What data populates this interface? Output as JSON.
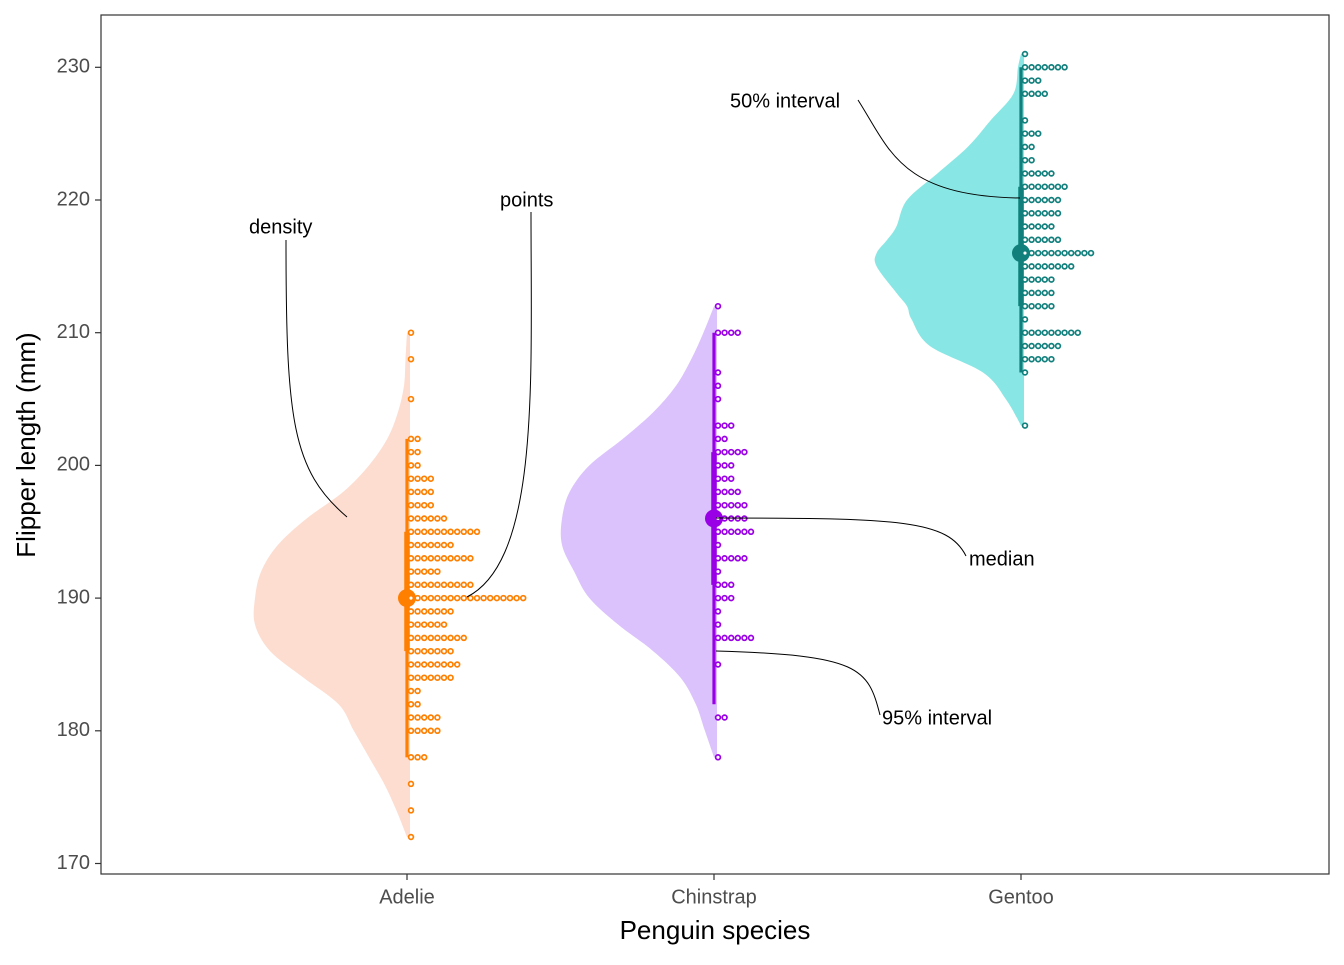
{
  "chart_data": {
    "type": "raincloud",
    "title": "",
    "xlabel": "Penguin species",
    "ylabel": "Flipper length (mm)",
    "ylim": [
      169,
      234
    ],
    "yticks": [
      170,
      180,
      190,
      200,
      210,
      220,
      230
    ],
    "categories": [
      "Adelie",
      "Chinstrap",
      "Gentoo"
    ],
    "grid": false,
    "legend": "none",
    "series": [
      {
        "category": "Adelie",
        "color": "#FF7F00",
        "fill": "#FDDDD0",
        "median": 190,
        "interval_50": [
          186,
          195
        ],
        "interval_95": [
          178,
          202
        ],
        "density": [
          [
            172,
            0.0
          ],
          [
            174,
            0.07
          ],
          [
            176,
            0.15
          ],
          [
            178,
            0.25
          ],
          [
            180,
            0.35
          ],
          [
            182,
            0.45
          ],
          [
            184,
            0.68
          ],
          [
            186,
            0.9
          ],
          [
            188,
            1.0
          ],
          [
            190,
            1.0
          ],
          [
            192,
            0.96
          ],
          [
            194,
            0.85
          ],
          [
            196,
            0.66
          ],
          [
            198,
            0.42
          ],
          [
            200,
            0.25
          ],
          [
            202,
            0.13
          ],
          [
            204,
            0.06
          ],
          [
            206,
            0.02
          ],
          [
            208,
            0.01
          ],
          [
            210,
            0.0
          ]
        ],
        "points": [
          [
            172,
            1
          ],
          [
            174,
            1
          ],
          [
            176,
            1
          ],
          [
            178,
            3
          ],
          [
            180,
            5
          ],
          [
            181,
            5
          ],
          [
            182,
            2
          ],
          [
            183,
            2
          ],
          [
            184,
            7
          ],
          [
            185,
            8
          ],
          [
            186,
            7
          ],
          [
            187,
            9
          ],
          [
            188,
            6
          ],
          [
            189,
            7
          ],
          [
            190,
            18
          ],
          [
            191,
            10
          ],
          [
            192,
            5
          ],
          [
            193,
            10
          ],
          [
            194,
            7
          ],
          [
            195,
            11
          ],
          [
            196,
            6
          ],
          [
            197,
            4
          ],
          [
            198,
            4
          ],
          [
            199,
            4
          ],
          [
            200,
            2
          ],
          [
            201,
            2
          ],
          [
            202,
            2
          ],
          [
            205,
            1
          ],
          [
            208,
            1
          ],
          [
            210,
            1
          ]
        ]
      },
      {
        "category": "Chinstrap",
        "color": "#9A00E6",
        "fill": "#DCC2FC",
        "median": 196,
        "interval_50": [
          191,
          201
        ],
        "interval_95": [
          182,
          210
        ],
        "density": [
          [
            178,
            0.0
          ],
          [
            180,
            0.06
          ],
          [
            182,
            0.12
          ],
          [
            184,
            0.22
          ],
          [
            186,
            0.4
          ],
          [
            188,
            0.63
          ],
          [
            190,
            0.82
          ],
          [
            192,
            0.92
          ],
          [
            194,
            1.0
          ],
          [
            196,
            1.0
          ],
          [
            198,
            0.95
          ],
          [
            200,
            0.82
          ],
          [
            202,
            0.6
          ],
          [
            204,
            0.4
          ],
          [
            206,
            0.25
          ],
          [
            208,
            0.15
          ],
          [
            210,
            0.07
          ],
          [
            212,
            0.0
          ]
        ],
        "points": [
          [
            178,
            1
          ],
          [
            181,
            2
          ],
          [
            185,
            1
          ],
          [
            187,
            6
          ],
          [
            188,
            1
          ],
          [
            189,
            1
          ],
          [
            190,
            3
          ],
          [
            191,
            3
          ],
          [
            192,
            1
          ],
          [
            193,
            5
          ],
          [
            194,
            1
          ],
          [
            195,
            6
          ],
          [
            196,
            5
          ],
          [
            197,
            5
          ],
          [
            198,
            4
          ],
          [
            199,
            3
          ],
          [
            200,
            3
          ],
          [
            201,
            5
          ],
          [
            202,
            2
          ],
          [
            203,
            3
          ],
          [
            205,
            1
          ],
          [
            206,
            1
          ],
          [
            207,
            1
          ],
          [
            210,
            4
          ],
          [
            212,
            1
          ]
        ]
      },
      {
        "category": "Gentoo",
        "color": "#11807D",
        "fill": "#88E7E4",
        "median": 216,
        "interval_50": [
          212,
          221
        ],
        "interval_95": [
          207,
          230
        ],
        "density": [
          [
            203,
            0.0
          ],
          [
            205,
            0.1
          ],
          [
            207,
            0.25
          ],
          [
            209,
            0.6
          ],
          [
            211,
            0.72
          ],
          [
            212,
            0.75
          ],
          [
            213,
            0.82
          ],
          [
            215,
            0.95
          ],
          [
            216,
            0.95
          ],
          [
            217,
            0.88
          ],
          [
            218,
            0.82
          ],
          [
            220,
            0.75
          ],
          [
            222,
            0.55
          ],
          [
            224,
            0.35
          ],
          [
            226,
            0.2
          ],
          [
            228,
            0.05
          ],
          [
            230,
            0.02
          ],
          [
            231,
            0.0
          ]
        ],
        "points": [
          [
            203,
            1
          ],
          [
            207,
            1
          ],
          [
            208,
            5
          ],
          [
            209,
            6
          ],
          [
            210,
            9
          ],
          [
            211,
            1
          ],
          [
            212,
            5
          ],
          [
            213,
            5
          ],
          [
            214,
            5
          ],
          [
            215,
            8
          ],
          [
            216,
            11
          ],
          [
            217,
            6
          ],
          [
            218,
            5
          ],
          [
            219,
            6
          ],
          [
            220,
            6
          ],
          [
            221,
            7
          ],
          [
            222,
            5
          ],
          [
            223,
            2
          ],
          [
            224,
            2
          ],
          [
            225,
            3
          ],
          [
            226,
            1
          ],
          [
            228,
            4
          ],
          [
            229,
            3
          ],
          [
            230,
            7
          ],
          [
            231,
            1
          ]
        ]
      }
    ],
    "annotations": [
      {
        "label": "density",
        "category": "Adelie",
        "y": 196
      },
      {
        "label": "points",
        "category": "Adelie",
        "y": 190
      },
      {
        "label": "50% interval",
        "category": "Gentoo",
        "y": 220
      },
      {
        "label": "median",
        "category": "Chinstrap",
        "y": 196
      },
      {
        "label": "95% interval",
        "category": "Chinstrap",
        "y": 186
      }
    ]
  }
}
